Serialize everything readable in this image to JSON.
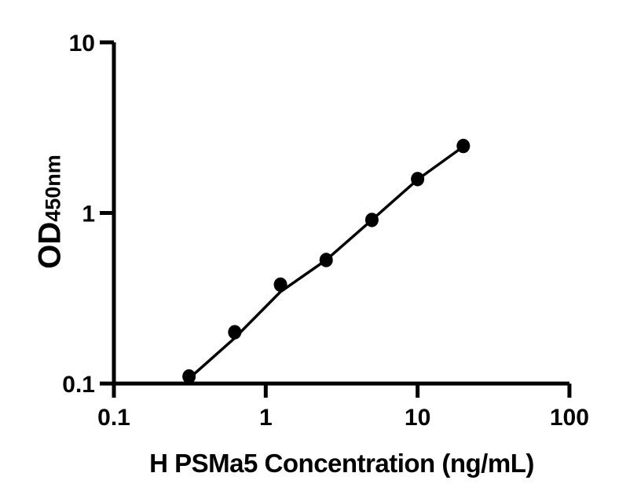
{
  "chart_data": {
    "type": "scatter",
    "title": "",
    "xlabel": "H PSMa5 Concentration (ng/mL)",
    "ylabel_main": "OD",
    "ylabel_subscript": "450nm",
    "xscale": "log",
    "yscale": "log",
    "xlim": [
      0.1,
      100
    ],
    "ylim": [
      0.1,
      10
    ],
    "grid": false,
    "legend": "none",
    "x_ticks": [
      {
        "value": 0.1,
        "label": "0.1"
      },
      {
        "value": 1,
        "label": "1"
      },
      {
        "value": 10,
        "label": "10"
      },
      {
        "value": 100,
        "label": "100"
      }
    ],
    "y_ticks": [
      {
        "value": 0.1,
        "label": "0.1"
      },
      {
        "value": 1,
        "label": "1"
      },
      {
        "value": 10,
        "label": "10"
      }
    ],
    "series": [
      {
        "marker": "filled-circle",
        "color": "#000000",
        "x": [
          0.3125,
          0.625,
          1.25,
          2.5,
          5,
          10,
          20
        ],
        "y": [
          0.11,
          0.2,
          0.38,
          0.53,
          0.91,
          1.58,
          2.47
        ]
      }
    ],
    "trend_line": {
      "color": "#000000",
      "x": [
        0.3125,
        0.625,
        1.25,
        2.5,
        5,
        10,
        20
      ],
      "y": [
        0.107,
        0.185,
        0.345,
        0.53,
        0.91,
        1.57,
        2.45
      ]
    },
    "axis_color": "#000000",
    "background_color": "#ffffff"
  }
}
